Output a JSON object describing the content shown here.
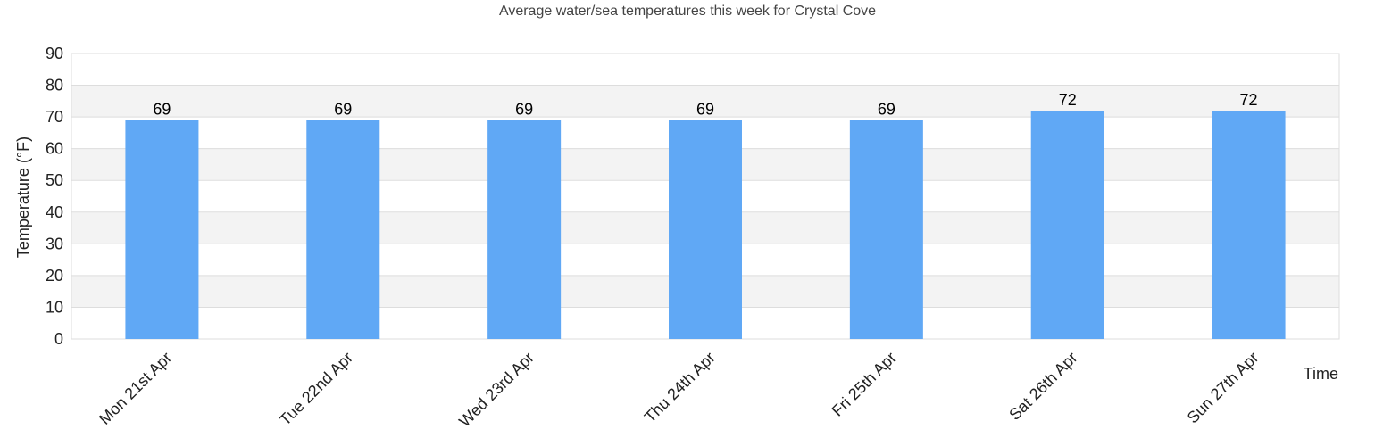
{
  "chart_data": {
    "type": "bar",
    "title": "Average water/sea temperatures this week for Crystal Cove",
    "xlabel": "Time",
    "ylabel": "Temperature (°F)",
    "categories": [
      "Mon 21st Apr",
      "Tue 22nd Apr",
      "Wed 23rd Apr",
      "Thu 24th Apr",
      "Fri 25th Apr",
      "Sat 26th Apr",
      "Sun 27th Apr"
    ],
    "values": [
      69,
      69,
      69,
      69,
      69,
      72,
      72
    ],
    "ylim": [
      0,
      90
    ],
    "yticks": [
      0,
      10,
      20,
      30,
      40,
      50,
      60,
      70,
      80,
      90
    ],
    "grid": true,
    "legend": "none",
    "colors": {
      "bar": "#60a8f5",
      "band": "#f3f3f3",
      "grid": "#dddddd",
      "frame": "#dddddd"
    }
  }
}
